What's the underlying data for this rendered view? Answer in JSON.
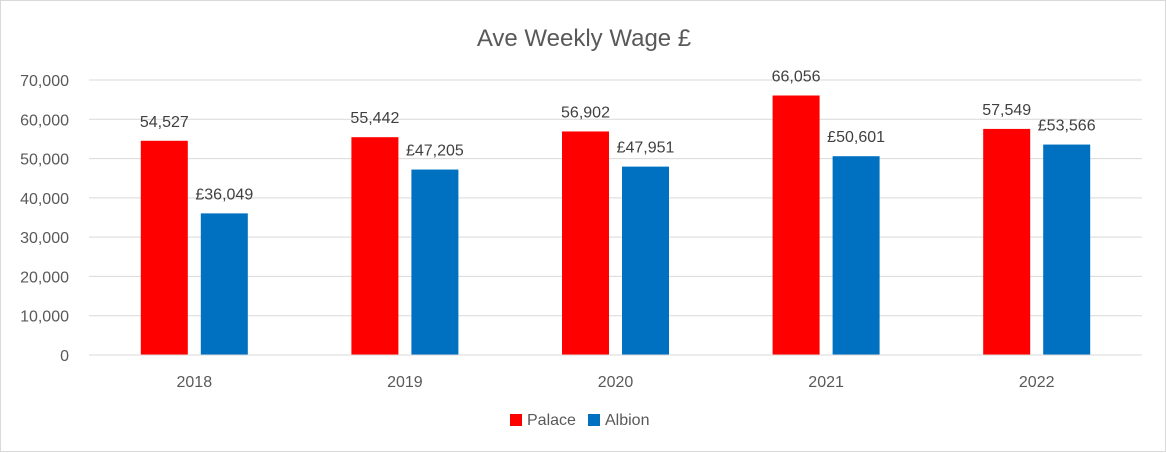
{
  "chart_data": {
    "type": "bar",
    "title": "Ave Weekly Wage £",
    "categories": [
      "2018",
      "2019",
      "2020",
      "2021",
      "2022"
    ],
    "series": [
      {
        "name": "Palace",
        "color": "#ff0000",
        "values": [
          54527,
          55442,
          56902,
          66056,
          57549
        ],
        "labels": [
          "54,527",
          "55,442",
          "56,902",
          "66,056",
          "57,549"
        ]
      },
      {
        "name": "Albion",
        "color": "#0070c0",
        "values": [
          36049,
          47205,
          47951,
          50601,
          53566
        ],
        "labels": [
          "£36,049",
          "£47,205",
          "£47,951",
          "£50,601",
          "£53,566"
        ]
      }
    ],
    "ylim": [
      0,
      70000
    ],
    "y_ticks": [
      0,
      10000,
      20000,
      30000,
      40000,
      50000,
      60000,
      70000
    ],
    "y_tick_labels": [
      "0",
      "10,000",
      "20,000",
      "30,000",
      "40,000",
      "50,000",
      "60,000",
      "70,000"
    ],
    "grid": true,
    "gridline_color": "#d9d9d9",
    "legend_position": "bottom"
  }
}
